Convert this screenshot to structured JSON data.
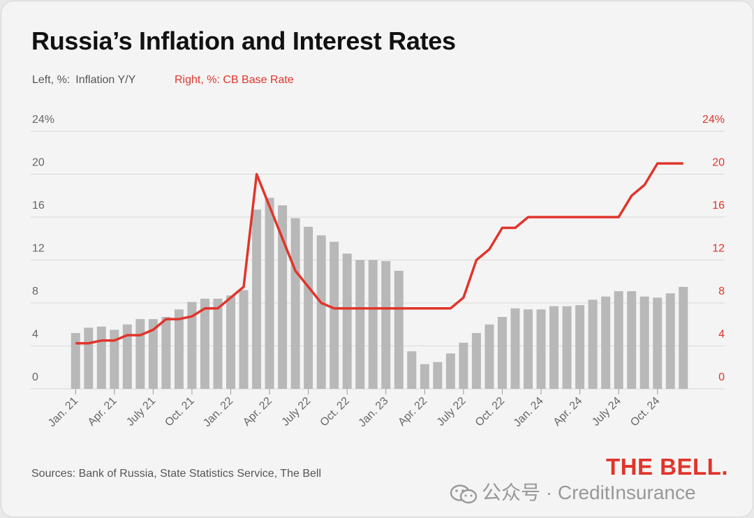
{
  "title": "Russia’s Inflation and Interest Rates",
  "legend": {
    "left_axis": "Left, %:",
    "left_series": "Inflation Y/Y",
    "right_axis_and_series": "Right, %: CB Base Rate"
  },
  "sources": "Sources: Bank of Russia,  State Statistics Service, The Bell",
  "brand": "THE BELL.",
  "watermark": "公众号 · CreditInsurance",
  "colors": {
    "bars": "#b8b8b8",
    "line": "#e0352b",
    "grid": "#d9d9d9",
    "axis_text": "#666666"
  },
  "chart_data": {
    "type": "bar",
    "ylim_left": [
      0,
      24
    ],
    "ylim_right": [
      0,
      24
    ],
    "y_ticks_left": [
      "0",
      "4",
      "8",
      "12",
      "16",
      "20",
      "24%"
    ],
    "y_ticks_right": [
      "0",
      "4",
      "8",
      "12",
      "16",
      "20",
      "24%"
    ],
    "x_tick_labels": [
      "Jan. 21",
      "Apr. 21",
      "July 21",
      "Oct. 21",
      "Jan. 22",
      "Apr. 22",
      "July 22",
      "Oct. 22",
      "Jan. 23",
      "Apr. 22",
      "July 22",
      "Oct. 22",
      "Jan. 24",
      "Apr. 24",
      "July 24",
      "Oct. 24"
    ],
    "x_tick_every": 3,
    "series": [
      {
        "name": "Inflation Y/Y",
        "type": "bar",
        "axis": "left",
        "values": [
          5.2,
          5.7,
          5.8,
          5.5,
          6.0,
          6.5,
          6.5,
          6.7,
          7.4,
          8.1,
          8.4,
          8.4,
          8.7,
          9.2,
          16.7,
          17.8,
          17.1,
          15.9,
          15.1,
          14.3,
          13.7,
          12.6,
          12.0,
          12.0,
          11.9,
          11.0,
          3.5,
          2.3,
          2.5,
          3.3,
          4.3,
          5.2,
          6.0,
          6.7,
          7.5,
          7.4,
          7.4,
          7.7,
          7.7,
          7.8,
          8.3,
          8.6,
          9.1,
          9.1,
          8.6,
          8.5,
          8.9,
          9.5
        ]
      },
      {
        "name": "CB Base Rate",
        "type": "line",
        "axis": "right",
        "values": [
          4.25,
          4.25,
          4.5,
          4.5,
          5.0,
          5.0,
          5.5,
          6.5,
          6.5,
          6.75,
          7.5,
          7.5,
          8.5,
          9.5,
          20.0,
          17.0,
          14.0,
          11.0,
          9.5,
          8.0,
          7.5,
          7.5,
          7.5,
          7.5,
          7.5,
          7.5,
          7.5,
          7.5,
          7.5,
          7.5,
          8.5,
          12.0,
          13.0,
          15.0,
          15.0,
          16.0,
          16.0,
          16.0,
          16.0,
          16.0,
          16.0,
          16.0,
          16.0,
          18.0,
          19.0,
          21.0,
          21.0,
          21.0
        ]
      }
    ]
  }
}
